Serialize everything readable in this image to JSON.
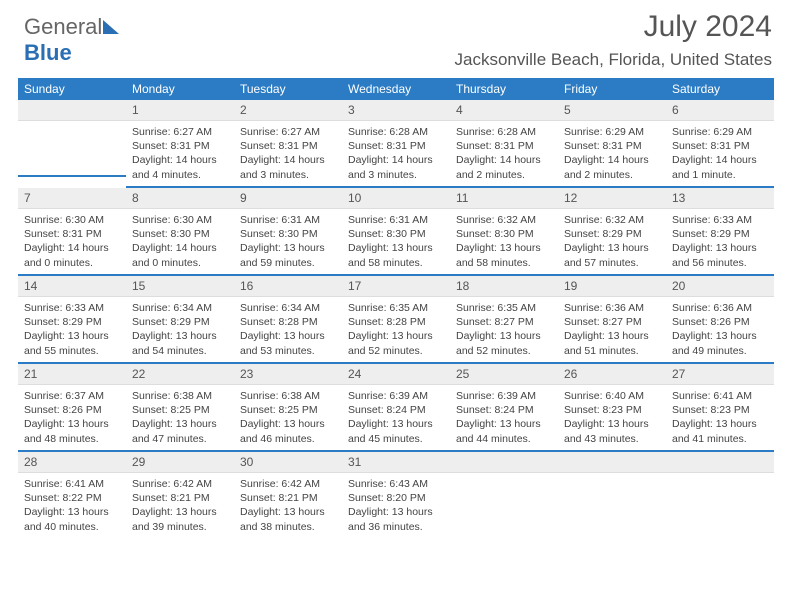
{
  "brand": {
    "part1": "General",
    "part2": "Blue"
  },
  "title": "July 2024",
  "location": "Jacksonville Beach, Florida, United States",
  "colors": {
    "header_bg": "#2b7cc4",
    "header_text": "#ffffff",
    "daybar_bg": "#eeeeee",
    "text": "#444444",
    "accent": "#2b7cc4"
  },
  "dayHeaders": [
    "Sunday",
    "Monday",
    "Tuesday",
    "Wednesday",
    "Thursday",
    "Friday",
    "Saturday"
  ],
  "weeks": [
    [
      null,
      {
        "n": "1",
        "sr": "Sunrise: 6:27 AM",
        "ss": "Sunset: 8:31 PM",
        "dl": "Daylight: 14 hours and 4 minutes."
      },
      {
        "n": "2",
        "sr": "Sunrise: 6:27 AM",
        "ss": "Sunset: 8:31 PM",
        "dl": "Daylight: 14 hours and 3 minutes."
      },
      {
        "n": "3",
        "sr": "Sunrise: 6:28 AM",
        "ss": "Sunset: 8:31 PM",
        "dl": "Daylight: 14 hours and 3 minutes."
      },
      {
        "n": "4",
        "sr": "Sunrise: 6:28 AM",
        "ss": "Sunset: 8:31 PM",
        "dl": "Daylight: 14 hours and 2 minutes."
      },
      {
        "n": "5",
        "sr": "Sunrise: 6:29 AM",
        "ss": "Sunset: 8:31 PM",
        "dl": "Daylight: 14 hours and 2 minutes."
      },
      {
        "n": "6",
        "sr": "Sunrise: 6:29 AM",
        "ss": "Sunset: 8:31 PM",
        "dl": "Daylight: 14 hours and 1 minute."
      }
    ],
    [
      {
        "n": "7",
        "sr": "Sunrise: 6:30 AM",
        "ss": "Sunset: 8:31 PM",
        "dl": "Daylight: 14 hours and 0 minutes."
      },
      {
        "n": "8",
        "sr": "Sunrise: 6:30 AM",
        "ss": "Sunset: 8:30 PM",
        "dl": "Daylight: 14 hours and 0 minutes."
      },
      {
        "n": "9",
        "sr": "Sunrise: 6:31 AM",
        "ss": "Sunset: 8:30 PM",
        "dl": "Daylight: 13 hours and 59 minutes."
      },
      {
        "n": "10",
        "sr": "Sunrise: 6:31 AM",
        "ss": "Sunset: 8:30 PM",
        "dl": "Daylight: 13 hours and 58 minutes."
      },
      {
        "n": "11",
        "sr": "Sunrise: 6:32 AM",
        "ss": "Sunset: 8:30 PM",
        "dl": "Daylight: 13 hours and 58 minutes."
      },
      {
        "n": "12",
        "sr": "Sunrise: 6:32 AM",
        "ss": "Sunset: 8:29 PM",
        "dl": "Daylight: 13 hours and 57 minutes."
      },
      {
        "n": "13",
        "sr": "Sunrise: 6:33 AM",
        "ss": "Sunset: 8:29 PM",
        "dl": "Daylight: 13 hours and 56 minutes."
      }
    ],
    [
      {
        "n": "14",
        "sr": "Sunrise: 6:33 AM",
        "ss": "Sunset: 8:29 PM",
        "dl": "Daylight: 13 hours and 55 minutes."
      },
      {
        "n": "15",
        "sr": "Sunrise: 6:34 AM",
        "ss": "Sunset: 8:29 PM",
        "dl": "Daylight: 13 hours and 54 minutes."
      },
      {
        "n": "16",
        "sr": "Sunrise: 6:34 AM",
        "ss": "Sunset: 8:28 PM",
        "dl": "Daylight: 13 hours and 53 minutes."
      },
      {
        "n": "17",
        "sr": "Sunrise: 6:35 AM",
        "ss": "Sunset: 8:28 PM",
        "dl": "Daylight: 13 hours and 52 minutes."
      },
      {
        "n": "18",
        "sr": "Sunrise: 6:35 AM",
        "ss": "Sunset: 8:27 PM",
        "dl": "Daylight: 13 hours and 52 minutes."
      },
      {
        "n": "19",
        "sr": "Sunrise: 6:36 AM",
        "ss": "Sunset: 8:27 PM",
        "dl": "Daylight: 13 hours and 51 minutes."
      },
      {
        "n": "20",
        "sr": "Sunrise: 6:36 AM",
        "ss": "Sunset: 8:26 PM",
        "dl": "Daylight: 13 hours and 49 minutes."
      }
    ],
    [
      {
        "n": "21",
        "sr": "Sunrise: 6:37 AM",
        "ss": "Sunset: 8:26 PM",
        "dl": "Daylight: 13 hours and 48 minutes."
      },
      {
        "n": "22",
        "sr": "Sunrise: 6:38 AM",
        "ss": "Sunset: 8:25 PM",
        "dl": "Daylight: 13 hours and 47 minutes."
      },
      {
        "n": "23",
        "sr": "Sunrise: 6:38 AM",
        "ss": "Sunset: 8:25 PM",
        "dl": "Daylight: 13 hours and 46 minutes."
      },
      {
        "n": "24",
        "sr": "Sunrise: 6:39 AM",
        "ss": "Sunset: 8:24 PM",
        "dl": "Daylight: 13 hours and 45 minutes."
      },
      {
        "n": "25",
        "sr": "Sunrise: 6:39 AM",
        "ss": "Sunset: 8:24 PM",
        "dl": "Daylight: 13 hours and 44 minutes."
      },
      {
        "n": "26",
        "sr": "Sunrise: 6:40 AM",
        "ss": "Sunset: 8:23 PM",
        "dl": "Daylight: 13 hours and 43 minutes."
      },
      {
        "n": "27",
        "sr": "Sunrise: 6:41 AM",
        "ss": "Sunset: 8:23 PM",
        "dl": "Daylight: 13 hours and 41 minutes."
      }
    ],
    [
      {
        "n": "28",
        "sr": "Sunrise: 6:41 AM",
        "ss": "Sunset: 8:22 PM",
        "dl": "Daylight: 13 hours and 40 minutes."
      },
      {
        "n": "29",
        "sr": "Sunrise: 6:42 AM",
        "ss": "Sunset: 8:21 PM",
        "dl": "Daylight: 13 hours and 39 minutes."
      },
      {
        "n": "30",
        "sr": "Sunrise: 6:42 AM",
        "ss": "Sunset: 8:21 PM",
        "dl": "Daylight: 13 hours and 38 minutes."
      },
      {
        "n": "31",
        "sr": "Sunrise: 6:43 AM",
        "ss": "Sunset: 8:20 PM",
        "dl": "Daylight: 13 hours and 36 minutes."
      },
      null,
      null,
      null
    ]
  ]
}
